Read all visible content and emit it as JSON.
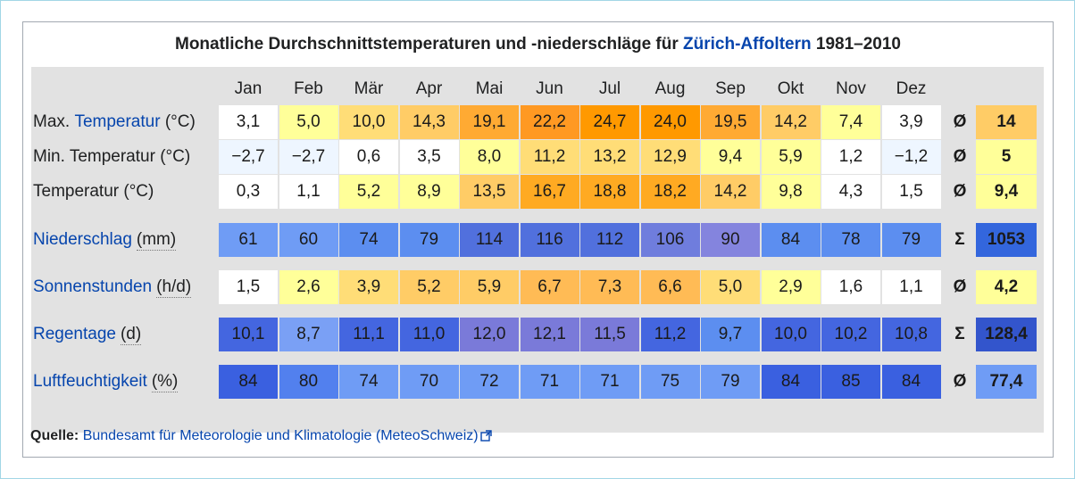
{
  "title": {
    "prefix": "Monatliche Durchschnittstemperaturen und -niederschläge für ",
    "place": "Zürich-Affoltern",
    "suffix": " 1981–2010"
  },
  "months": [
    "Jan",
    "Feb",
    "Mär",
    "Apr",
    "Mai",
    "Jun",
    "Jul",
    "Aug",
    "Sep",
    "Okt",
    "Nov",
    "Dez"
  ],
  "rows": [
    {
      "label_link": "",
      "label_prefix": "Max. ",
      "label_linked": "Temperatur",
      "label_plain": " (°C)",
      "values": [
        "3,1",
        "5,0",
        "10,0",
        "14,3",
        "19,1",
        "22,2",
        "24,7",
        "24,0",
        "19,5",
        "14,2",
        "7,4",
        "3,9"
      ],
      "colors": [
        "#ffffff",
        "#ffff99",
        "#ffdd77",
        "#ffcc66",
        "#ffaa33",
        "#ff9922",
        "#ff9900",
        "#ff9900",
        "#ffaa33",
        "#ffcc66",
        "#ffff99",
        "#ffffff"
      ],
      "symbol": "Ø",
      "summary": "14",
      "summary_color": "#ffcc66"
    },
    {
      "label_link": "",
      "label_prefix": "Min. Temperatur (°C)",
      "label_linked": "",
      "label_plain": "",
      "values": [
        "−2,7",
        "−2,7",
        "0,6",
        "3,5",
        "8,0",
        "11,2",
        "13,2",
        "12,9",
        "9,4",
        "5,9",
        "1,2",
        "−1,2"
      ],
      "colors": [
        "#eef6ff",
        "#eef6ff",
        "#ffffff",
        "#ffffff",
        "#ffff99",
        "#ffdd77",
        "#ffdd77",
        "#ffdd77",
        "#ffff99",
        "#ffff99",
        "#ffffff",
        "#eef6ff"
      ],
      "symbol": "Ø",
      "summary": "5",
      "summary_color": "#ffff99"
    },
    {
      "label_link": "",
      "label_prefix": "Temperatur (°C)",
      "label_linked": "",
      "label_plain": "",
      "values": [
        "0,3",
        "1,1",
        "5,2",
        "8,9",
        "13,5",
        "16,7",
        "18,8",
        "18,2",
        "14,2",
        "9,8",
        "4,3",
        "1,5"
      ],
      "colors": [
        "#ffffff",
        "#ffffff",
        "#ffff99",
        "#ffff99",
        "#ffcc66",
        "#ffaa22",
        "#ffaa22",
        "#ffaa22",
        "#ffcc66",
        "#ffff99",
        "#ffffff",
        "#ffffff"
      ],
      "symbol": "Ø",
      "summary": "9,4",
      "summary_color": "#ffff99"
    },
    {
      "label_link": "",
      "label_prefix": "",
      "label_linked": "Niederschlag",
      "label_plain": "(mm)",
      "values": [
        "61",
        "60",
        "74",
        "79",
        "114",
        "116",
        "112",
        "106",
        "90",
        "84",
        "78",
        "79"
      ],
      "colors": [
        "#6f9cf5",
        "#6f9cf5",
        "#5c8ef0",
        "#5c8ef0",
        "#5170dd",
        "#5170dd",
        "#5170dd",
        "#6f7ddd",
        "#8484de",
        "#5c8ef0",
        "#5c8ef0",
        "#5c8ef0"
      ],
      "symbol": "Σ",
      "summary": "1053",
      "summary_color": "#3366dd"
    },
    {
      "label_link": "",
      "label_prefix": "",
      "label_linked": "Sonnenstunden",
      "label_plain": "(h/d)",
      "values": [
        "1,5",
        "2,6",
        "3,9",
        "5,2",
        "5,9",
        "6,7",
        "7,3",
        "6,6",
        "5,0",
        "2,9",
        "1,6",
        "1,1"
      ],
      "colors": [
        "#ffffff",
        "#ffff99",
        "#ffdd77",
        "#ffcc66",
        "#ffcc66",
        "#ffbb55",
        "#ffbb55",
        "#ffbb55",
        "#ffdd77",
        "#ffff99",
        "#ffffff",
        "#ffffff"
      ],
      "symbol": "Ø",
      "summary": "4,2",
      "summary_color": "#ffff99"
    },
    {
      "label_link": "",
      "label_prefix": "",
      "label_linked": "Regentage",
      "label_plain": "(d)",
      "values": [
        "10,1",
        "8,7",
        "11,1",
        "11,0",
        "12,0",
        "12,1",
        "11,5",
        "11,2",
        "9,7",
        "10,0",
        "10,2",
        "10,8"
      ],
      "colors": [
        "#4466e0",
        "#7aa0f5",
        "#4466e0",
        "#4466e0",
        "#7a7ad9",
        "#7a7ad9",
        "#7a7ad9",
        "#4466e0",
        "#5c8ef0",
        "#4466e0",
        "#4466e0",
        "#4466e0"
      ],
      "symbol": "Σ",
      "summary": "128,4",
      "summary_color": "#3355cc"
    },
    {
      "label_link": "",
      "label_prefix": "",
      "label_linked": "Luftfeuchtigkeit",
      "label_plain": "(%)",
      "values": [
        "84",
        "80",
        "74",
        "70",
        "72",
        "71",
        "71",
        "75",
        "79",
        "84",
        "85",
        "84"
      ],
      "colors": [
        "#3a60e0",
        "#5280ee",
        "#6f9cf5",
        "#6f9cf5",
        "#6f9cf5",
        "#6f9cf5",
        "#6f9cf5",
        "#6f9cf5",
        "#6f9cf5",
        "#3a60e0",
        "#3a60e0",
        "#3a60e0"
      ],
      "symbol": "Ø",
      "summary": "77,4",
      "summary_color": "#6f9cf5"
    }
  ],
  "source": {
    "label": "Quelle:",
    "link_text": "Bundesamt für Meteorologie und Klimatologie (MeteoSchweiz)",
    "icon": "external-link-icon"
  }
}
